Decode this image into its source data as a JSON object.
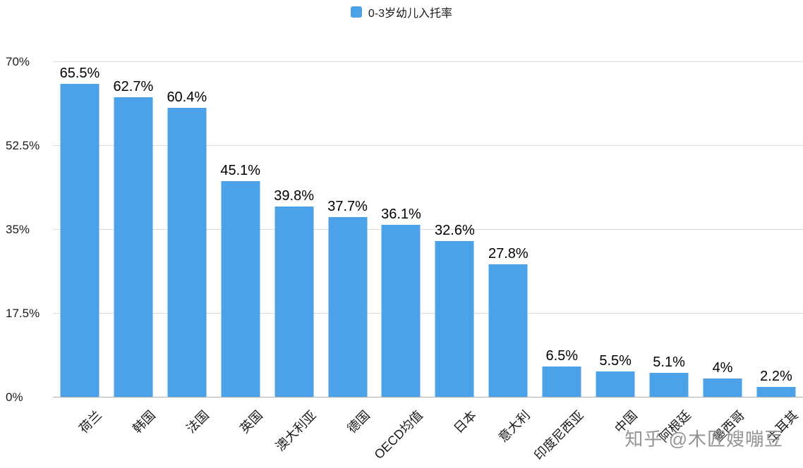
{
  "legend": {
    "label": "0-3岁幼儿入托率",
    "swatch_color": "#4CA2E9"
  },
  "watermark": "知乎 @木匠嫂嘣豆",
  "chart_data": {
    "type": "bar",
    "title": "",
    "series_name": "0-3岁幼儿入托率",
    "categories": [
      "荷兰",
      "韩国",
      "法国",
      "英国",
      "澳大利亚",
      "德国",
      "OECD均值",
      "日本",
      "意大利",
      "印度尼西亚",
      "中国",
      "阿根廷",
      "墨西哥",
      "土耳其"
    ],
    "values": [
      65.5,
      62.7,
      60.4,
      45.1,
      39.8,
      37.7,
      36.1,
      32.6,
      27.8,
      6.5,
      5.5,
      5.1,
      4,
      2.2
    ],
    "value_labels": [
      "65.5%",
      "62.7%",
      "60.4%",
      "45.1%",
      "39.8%",
      "37.7%",
      "36.1%",
      "32.6%",
      "27.8%",
      "6.5%",
      "5.5%",
      "5.1%",
      "4%",
      "2.2%"
    ],
    "xlabel": "",
    "ylabel": "",
    "ylim": [
      0,
      70
    ],
    "yticks": [
      0,
      17.5,
      35,
      52.5,
      70
    ],
    "ytick_labels": [
      "0%",
      "17.5%",
      "35%",
      "52.5%",
      "70%"
    ],
    "bar_color": "#4CA2E9",
    "grid": true,
    "legend_position": "top"
  }
}
